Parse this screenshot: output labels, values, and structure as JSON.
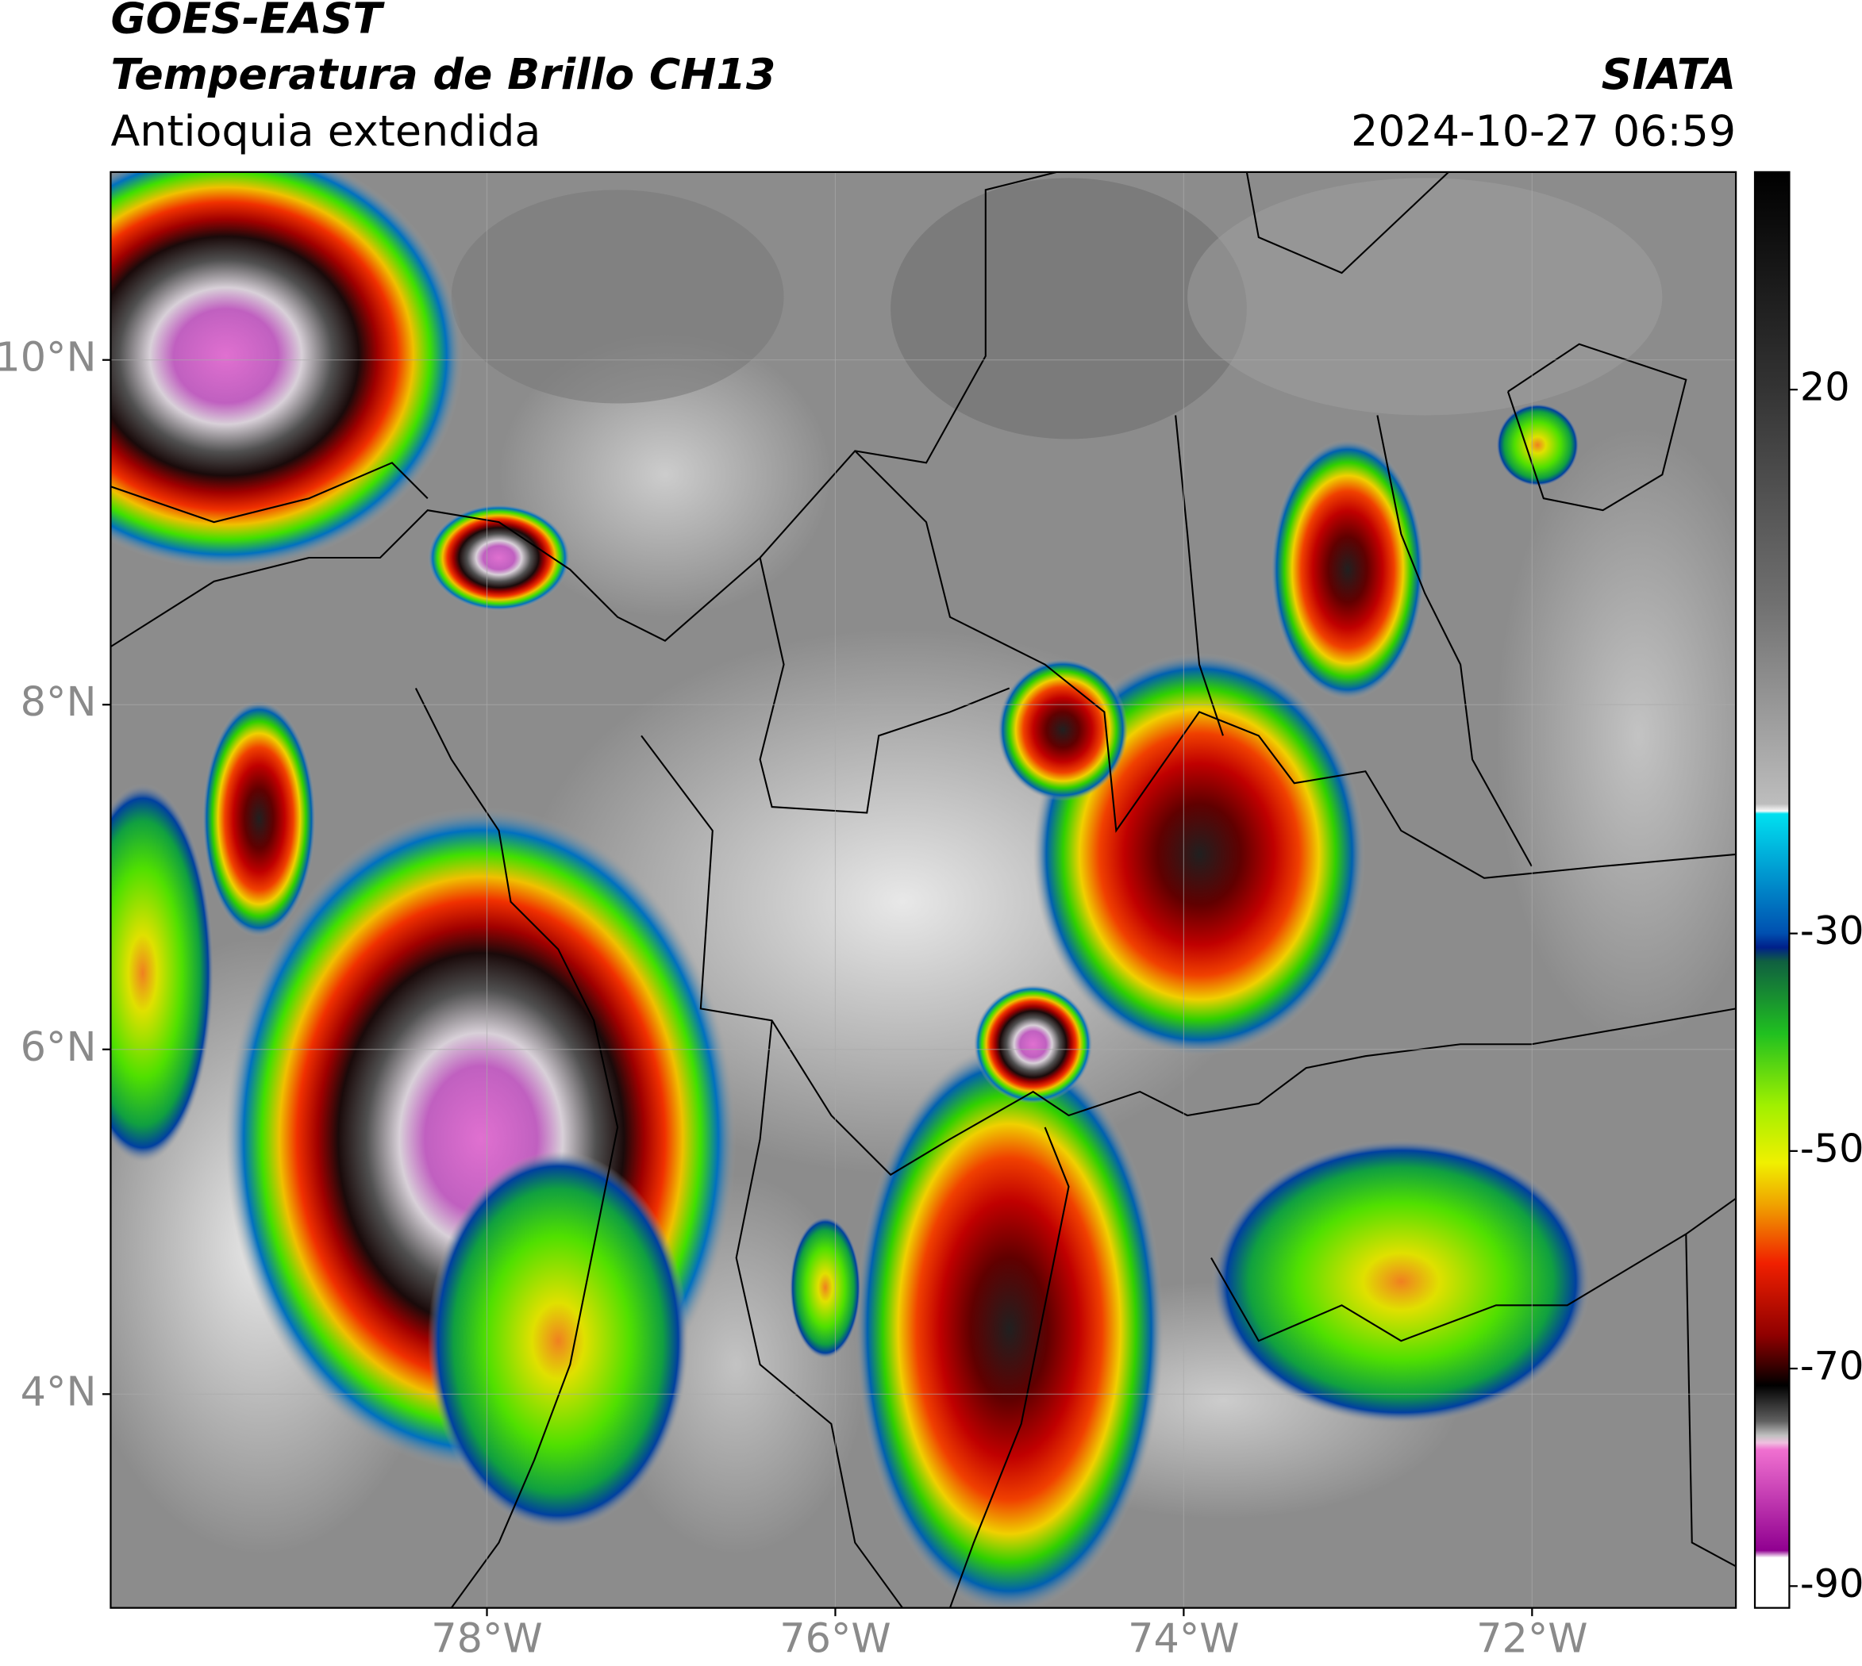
{
  "header": {
    "satellite": "GOES-EAST",
    "product": "Temperatura de Brillo CH13",
    "region": "Antioquia extendida",
    "source": "SIATA",
    "datetime": "2024-10-27 06:59"
  },
  "map": {
    "lon_range": [
      -80.16,
      -70.83
    ],
    "lat_range": [
      2.76,
      11.09
    ],
    "lon_ticks": [
      {
        "value": -78,
        "label": "78°W"
      },
      {
        "value": -76,
        "label": "76°W"
      },
      {
        "value": -74,
        "label": "74°W"
      },
      {
        "value": -72,
        "label": "72°W"
      }
    ],
    "lat_ticks": [
      {
        "value": 10,
        "label": "10°N"
      },
      {
        "value": 8,
        "label": "8°N"
      },
      {
        "value": 6,
        "label": "6°N"
      },
      {
        "value": 4,
        "label": "4°N"
      }
    ]
  },
  "colorbar": {
    "range": [
      -92,
      40
    ],
    "ticks": [
      20,
      -30,
      -50,
      -70,
      -90
    ]
  }
}
